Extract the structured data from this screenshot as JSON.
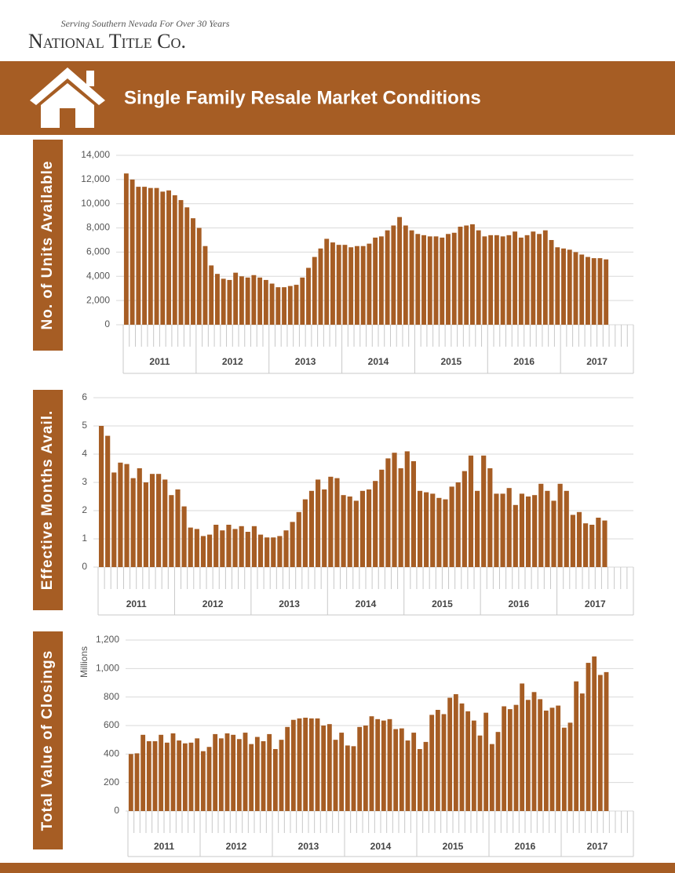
{
  "header": {
    "tagline": "Serving Southern Nevada For Over 30 Years",
    "company": "National Title Co.",
    "title": "Single Family Resale Market Conditions"
  },
  "chart_data": [
    {
      "type": "bar",
      "side_label": "No. of Units Available",
      "color": "#a65d24",
      "grid": true,
      "years": [
        "2011",
        "2012",
        "2013",
        "2014",
        "2015",
        "2016",
        "2017"
      ],
      "values": [
        12500,
        12000,
        11400,
        11400,
        11300,
        11300,
        11000,
        11100,
        10700,
        10300,
        9700,
        8800,
        8000,
        6500,
        4900,
        4200,
        3800,
        3700,
        4300,
        4000,
        3900,
        4100,
        3900,
        3700,
        3400,
        3100,
        3100,
        3200,
        3300,
        3900,
        4700,
        5600,
        6300,
        7100,
        6800,
        6600,
        6600,
        6400,
        6500,
        6500,
        6700,
        7200,
        7300,
        7800,
        8200,
        8900,
        8200,
        7800,
        7500,
        7400,
        7300,
        7300,
        7200,
        7500,
        7600,
        8100,
        8200,
        8300,
        7800,
        7300,
        7400,
        7400,
        7300,
        7400,
        7700,
        7200,
        7400,
        7700,
        7500,
        7800,
        7000,
        6400,
        6300,
        6200,
        6000,
        5800,
        5600,
        5500,
        5500,
        5400
      ],
      "ylim": [
        0,
        14000
      ],
      "yticks": [
        0,
        {
          "value": 2000,
          "label": "2,000"
        },
        {
          "value": 4000,
          "label": "4,000"
        },
        {
          "value": 6000,
          "label": "6,000"
        },
        {
          "value": 8000,
          "label": "8,000"
        },
        {
          "value": 10000,
          "label": "10,000"
        },
        {
          "value": 12000,
          "label": "12,000"
        },
        {
          "value": 14000,
          "label": "14,000"
        }
      ]
    },
    {
      "type": "bar",
      "side_label": "Effective Months Avail.",
      "color": "#a65d24",
      "grid": true,
      "years": [
        "2011",
        "2012",
        "2013",
        "2014",
        "2015",
        "2016",
        "2017"
      ],
      "values": [
        5.0,
        4.65,
        3.35,
        3.7,
        3.65,
        3.15,
        3.5,
        3.0,
        3.3,
        3.3,
        3.1,
        2.55,
        2.75,
        2.15,
        1.4,
        1.35,
        1.1,
        1.15,
        1.5,
        1.3,
        1.5,
        1.35,
        1.45,
        1.25,
        1.45,
        1.15,
        1.05,
        1.05,
        1.1,
        1.3,
        1.6,
        1.95,
        2.4,
        2.7,
        3.1,
        2.75,
        3.2,
        3.15,
        2.55,
        2.5,
        2.35,
        2.7,
        2.75,
        3.05,
        3.45,
        3.85,
        4.05,
        3.5,
        4.1,
        3.75,
        2.7,
        2.65,
        2.6,
        2.45,
        2.4,
        2.85,
        3.0,
        3.4,
        3.95,
        2.7,
        3.95,
        3.5,
        2.6,
        2.6,
        2.8,
        2.2,
        2.6,
        2.5,
        2.55,
        2.95,
        2.7,
        2.35,
        2.95,
        2.7,
        1.85,
        1.95,
        1.55,
        1.5,
        1.75,
        1.65
      ],
      "ylim": [
        0,
        6
      ],
      "yticks": [
        0,
        1,
        2,
        3,
        4,
        5,
        6
      ]
    },
    {
      "type": "bar",
      "side_label": "Total Value of Closings",
      "ylabel": "Millions",
      "color": "#a65d24",
      "grid": true,
      "years": [
        "2011",
        "2012",
        "2013",
        "2014",
        "2015",
        "2016",
        "2017"
      ],
      "values": [
        400,
        405,
        535,
        490,
        490,
        535,
        480,
        545,
        495,
        475,
        480,
        510,
        420,
        450,
        540,
        510,
        545,
        535,
        505,
        550,
        470,
        520,
        490,
        540,
        435,
        500,
        590,
        640,
        650,
        655,
        650,
        650,
        600,
        610,
        500,
        550,
        460,
        455,
        590,
        600,
        665,
        645,
        635,
        645,
        575,
        580,
        495,
        550,
        435,
        485,
        675,
        710,
        680,
        795,
        820,
        755,
        700,
        635,
        530,
        690,
        470,
        555,
        735,
        715,
        745,
        895,
        780,
        835,
        785,
        705,
        725,
        740,
        585,
        620,
        910,
        825,
        1040,
        1085,
        955,
        975
      ],
      "ylim": [
        0,
        1200
      ],
      "yticks": [
        0,
        200,
        400,
        600,
        800,
        {
          "value": 1000,
          "label": "1,000"
        },
        {
          "value": 1200,
          "label": "1,200"
        }
      ]
    }
  ]
}
